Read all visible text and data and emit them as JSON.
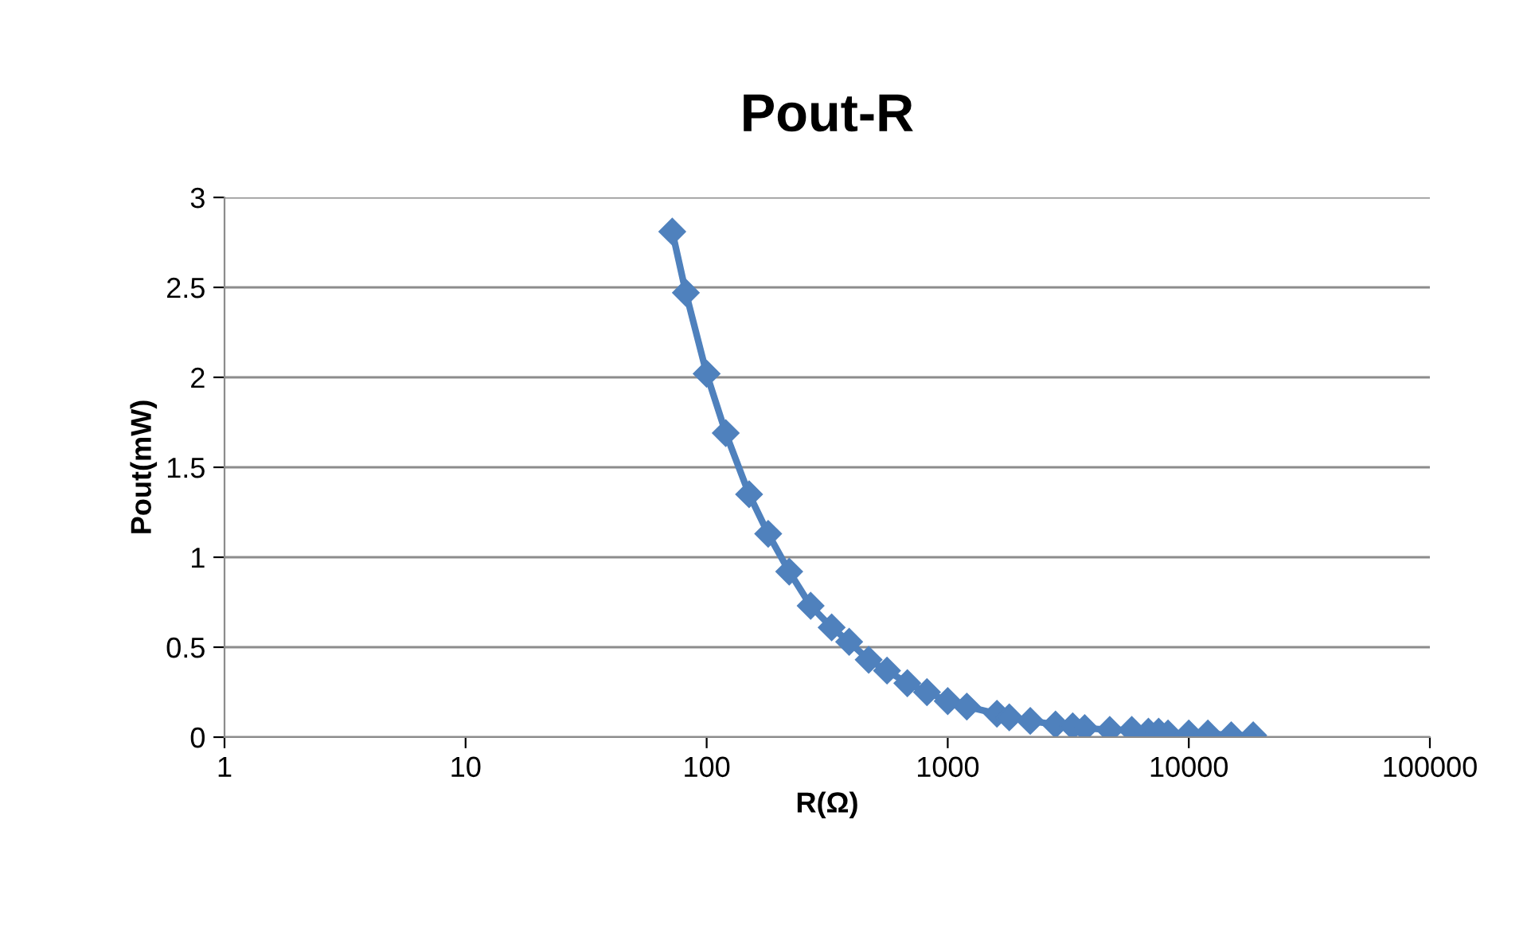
{
  "chart_data": {
    "type": "line",
    "title": "Pout-R",
    "xlabel": "R(Ω)",
    "ylabel": "Pout(mW)",
    "log": "x",
    "xlim": [
      1,
      100000
    ],
    "xticks": [
      1,
      10,
      100,
      1000,
      10000,
      100000
    ],
    "ylim": [
      0,
      3
    ],
    "yticks": [
      0,
      0.5,
      1,
      1.5,
      2,
      2.5,
      3
    ],
    "grid": "y",
    "marker": "diamond",
    "line_style": "solid",
    "legend": false,
    "series": [
      {
        "color": "#4f81bd",
        "x": [
          72,
          82,
          100,
          120,
          150,
          180,
          220,
          270,
          330,
          390,
          470,
          560,
          680,
          820,
          1000,
          1200,
          1600,
          1800,
          2200,
          2800,
          3300,
          3700,
          4700,
          5800,
          6800,
          7500,
          8200,
          10000,
          12000,
          15000,
          18500
        ],
        "values": [
          2.81,
          2.47,
          2.02,
          1.69,
          1.35,
          1.13,
          0.92,
          0.73,
          0.61,
          0.53,
          0.43,
          0.37,
          0.3,
          0.25,
          0.2,
          0.17,
          0.13,
          0.11,
          0.09,
          0.07,
          0.06,
          0.05,
          0.04,
          0.04,
          0.03,
          0.03,
          0.02,
          0.02,
          0.02,
          0.01,
          0.01
        ]
      }
    ]
  }
}
